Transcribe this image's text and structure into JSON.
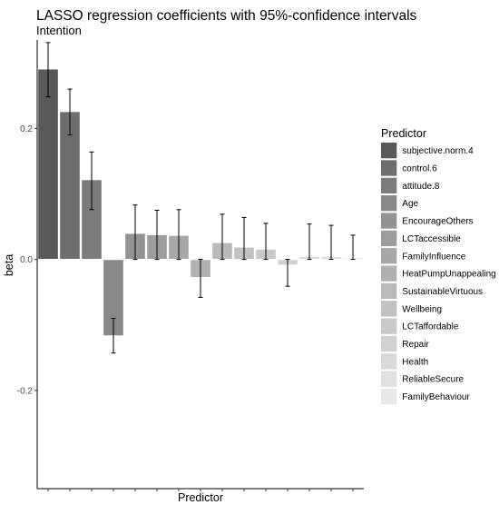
{
  "chart_data": {
    "type": "bar",
    "title": "LASSO regression coefficients with 95%-confidence intervals",
    "subtitle": "Intention",
    "xlabel": "Predictor",
    "ylabel": "beta",
    "ylim": [
      -0.35,
      0.335
    ],
    "yticks": [
      -0.2,
      0.0,
      0.2
    ],
    "ytick_labels": [
      "-0.2",
      "0.0",
      "0.2"
    ],
    "grid": false,
    "legend": {
      "title": "Predictor",
      "placement": "right",
      "entries": [
        {
          "label": "subjective.norm.4",
          "color": "#595959"
        },
        {
          "label": "control.6",
          "color": "#6e6e6e"
        },
        {
          "label": "attitude.8",
          "color": "#7c7c7c"
        },
        {
          "label": "Age",
          "color": "#888888"
        },
        {
          "label": "EncourageOthers",
          "color": "#939393"
        },
        {
          "label": "LCTaccessible",
          "color": "#9d9d9d"
        },
        {
          "label": "FamilyInfluence",
          "color": "#a7a7a7"
        },
        {
          "label": "HeatPumpUnappealing",
          "color": "#b0b0b0"
        },
        {
          "label": "SustainableVirtuous",
          "color": "#b9b9b9"
        },
        {
          "label": "Wellbeing",
          "color": "#c1c1c1"
        },
        {
          "label": "LCTaffordable",
          "color": "#c9c9c9"
        },
        {
          "label": "Repair",
          "color": "#d1d1d1"
        },
        {
          "label": "Health",
          "color": "#d9d9d9"
        },
        {
          "label": "ReliableSecure",
          "color": "#e0e0e0"
        },
        {
          "label": "FamilyBehaviour",
          "color": "#e8e8e8"
        }
      ]
    },
    "bars": [
      {
        "category": "subjective.norm.4",
        "value": 0.29,
        "ci": [
          0.248,
          0.331
        ]
      },
      {
        "category": "control.6",
        "value": 0.225,
        "ci": [
          0.19,
          0.26
        ]
      },
      {
        "category": "attitude.8",
        "value": 0.121,
        "ci": [
          0.076,
          0.164
        ]
      },
      {
        "category": "Age",
        "value": -0.116,
        "ci": [
          -0.143,
          -0.09
        ]
      },
      {
        "category": "EncourageOthers",
        "value": 0.039,
        "ci": [
          0.0,
          0.083
        ]
      },
      {
        "category": "LCTaccessible",
        "value": 0.037,
        "ci": [
          0.0,
          0.075
        ]
      },
      {
        "category": "FamilyInfluence",
        "value": 0.036,
        "ci": [
          0.0,
          0.076
        ]
      },
      {
        "category": "HeatPumpUnappealing",
        "value": -0.027,
        "ci": [
          -0.058,
          0.0
        ]
      },
      {
        "category": "SustainableVirtuous",
        "value": 0.025,
        "ci": [
          0.0,
          0.069
        ]
      },
      {
        "category": "Wellbeing",
        "value": 0.018,
        "ci": [
          0.0,
          0.064
        ]
      },
      {
        "category": "LCTaffordable",
        "value": 0.015,
        "ci": [
          0.0,
          0.055
        ]
      },
      {
        "category": "Repair",
        "value": -0.008,
        "ci": [
          -0.041,
          0.0
        ]
      },
      {
        "category": "Health",
        "value": 0.004,
        "ci": [
          0.0,
          0.054
        ]
      },
      {
        "category": "ReliableSecure",
        "value": 0.004,
        "ci": [
          0.0,
          0.052
        ]
      },
      {
        "category": "FamilyBehaviour",
        "value": 0.002,
        "ci": [
          0.0,
          0.037
        ]
      }
    ]
  }
}
